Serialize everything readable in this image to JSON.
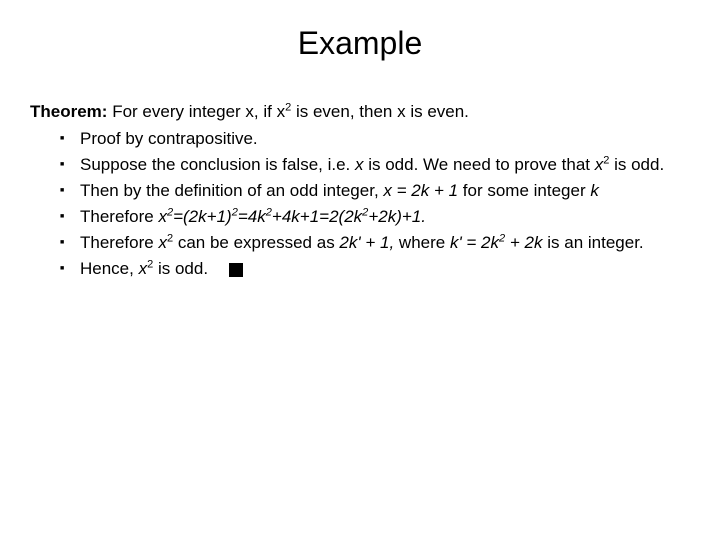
{
  "title": "Example",
  "theorem": {
    "label": "Theorem:",
    "statement_before": "  For every integer x, if x",
    "exp1": "2",
    "statement_after": " is even, then x is even."
  },
  "proof": {
    "items": [
      {
        "text": "Proof by contrapositive."
      },
      {
        "html": "Suppose the conclusion is false, i.e. <span class=\"italic\">x</span> is odd.  We need to prove that <span class=\"italic\">x</span><sup>2</sup> is odd."
      },
      {
        "html": "Then by the definition of an odd integer, <span class=\"italic\">x = 2k + 1</span> for some integer <span class=\"italic\">k</span>"
      },
      {
        "html": "Therefore <span class=\"italic\">x<sup>2</sup>=(2k+1)<sup>2</sup>=4k<sup>2</sup>+4k+1=2(2k<sup>2</sup>+2k)+1.</span>"
      },
      {
        "html": "Therefore <span class=\"italic\">x</span><sup>2</sup> can be expressed as <span class=\"italic\">2k' + 1,</span> where <span class=\"italic\">k' = 2k<sup>2</sup> + 2k</span> is an integer."
      },
      {
        "html": "Hence, <span class=\"italic\">x</span><sup>2</sup> is odd.   <span class=\"qed\" data-name=\"qed-symbol\" data-interactable=\"false\"></span>"
      }
    ]
  },
  "colors": {
    "background": "#ffffff",
    "text": "#000000"
  },
  "typography": {
    "title_fontsize": 32,
    "body_fontsize": 17,
    "font_family": "Comic Sans MS"
  }
}
